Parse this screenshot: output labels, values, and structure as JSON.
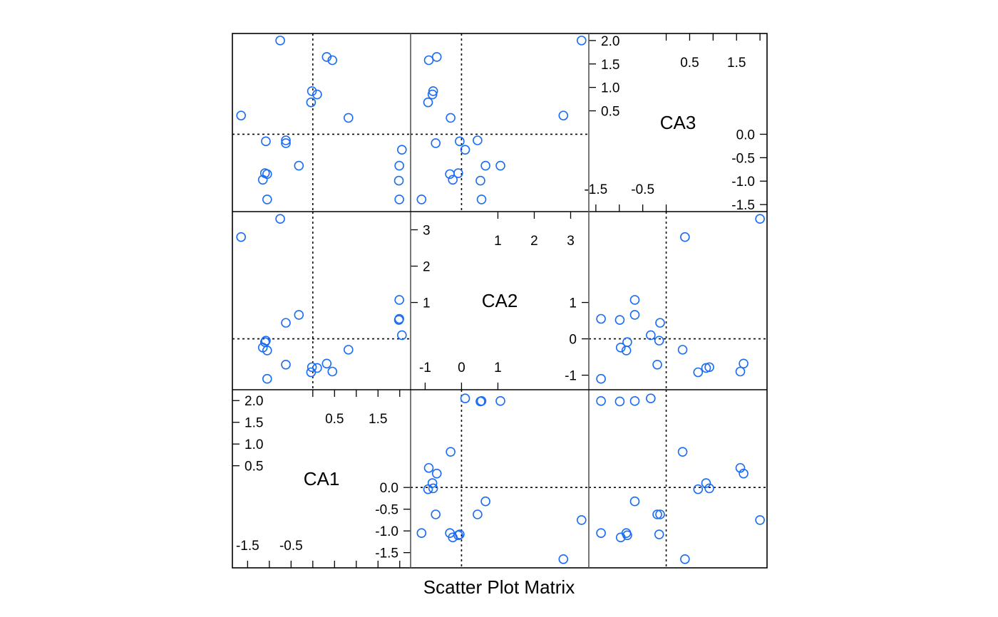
{
  "chart_data": {
    "type": "scatter",
    "title": "",
    "xlabel": "Scatter Plot Matrix",
    "variables": [
      "CA1",
      "CA2",
      "CA3"
    ],
    "point_color": "#1a6cf5",
    "reference_lines_at": 0,
    "axes": {
      "CA1": {
        "range": [
          -1.85,
          2.25
        ],
        "lower_ticks": [
          -1.5,
          -1.0,
          -0.5,
          0.0,
          0.5,
          1.0,
          1.5,
          2.0
        ],
        "lower_tick_labels": [
          "-1.5",
          "-0.5"
        ],
        "upper_ticks": [
          0.0,
          0.5,
          1.0,
          1.5,
          2.0
        ],
        "upper_tick_labels": [
          "0.5",
          "1.5"
        ],
        "side_ticks": [
          -1.5,
          -1.0,
          -0.5,
          0.0,
          0.5,
          1.0,
          1.5,
          2.0
        ],
        "side_low_labels": [
          "-1.5",
          "-1.0",
          "-0.5",
          "0.0"
        ],
        "side_high_labels": [
          "0.5",
          "1.0",
          "1.5",
          "2.0"
        ]
      },
      "CA2": {
        "range": [
          -1.4,
          3.5
        ],
        "lower_ticks": [
          -1,
          0,
          1
        ],
        "lower_tick_labels": [
          "-1",
          "0",
          "1"
        ],
        "upper_ticks": [
          1,
          2,
          3
        ],
        "upper_tick_labels": [
          "1",
          "2",
          "3"
        ],
        "side_ticks": [
          -1,
          0,
          1,
          2,
          3
        ],
        "side_low_labels": [
          "-1",
          "0",
          "1"
        ],
        "side_high_labels": [
          "1",
          "2",
          "3"
        ]
      },
      "CA3": {
        "range": [
          -1.65,
          2.15
        ],
        "lower_ticks": [
          -1.5,
          -1.0,
          -0.5,
          0.0
        ],
        "lower_tick_labels": [
          "-1.5",
          "-0.5"
        ],
        "upper_ticks": [
          0.0,
          0.5,
          1.0,
          1.5,
          2.0
        ],
        "upper_tick_labels": [
          "0.5",
          "1.5"
        ],
        "side_ticks": [
          -1.5,
          -1.0,
          -0.5,
          0.0,
          0.5,
          1.0,
          1.5,
          2.0
        ],
        "side_low_labels": [
          "-1.5",
          "-1.0",
          "-0.5",
          "0.0"
        ],
        "side_high_labels": [
          "0.5",
          "1.0",
          "1.5",
          "2.0"
        ]
      }
    },
    "points": [
      {
        "CA1": 2.05,
        "CA2": 0.1,
        "CA3": -0.33
      },
      {
        "CA1": 1.98,
        "CA2": 0.52,
        "CA3": -0.99
      },
      {
        "CA1": 1.99,
        "CA2": 0.55,
        "CA3": -1.39
      },
      {
        "CA1": 1.99,
        "CA2": 1.07,
        "CA3": -0.67
      },
      {
        "CA1": 0.82,
        "CA2": -0.3,
        "CA3": 0.35
      },
      {
        "CA1": 0.45,
        "CA2": -0.9,
        "CA3": 1.58
      },
      {
        "CA1": 0.32,
        "CA2": -0.68,
        "CA3": 1.65
      },
      {
        "CA1": 0.1,
        "CA2": -0.8,
        "CA3": 0.85
      },
      {
        "CA1": -0.04,
        "CA2": -0.92,
        "CA3": 0.68
      },
      {
        "CA1": -0.02,
        "CA2": -0.78,
        "CA3": 0.92
      },
      {
        "CA1": -0.32,
        "CA2": 0.66,
        "CA3": -0.67
      },
      {
        "CA1": -0.62,
        "CA2": 0.44,
        "CA3": -0.13
      },
      {
        "CA1": -0.62,
        "CA2": -0.71,
        "CA3": -0.19
      },
      {
        "CA1": -1.05,
        "CA2": -0.32,
        "CA3": -0.85
      },
      {
        "CA1": -1.1,
        "CA2": -0.09,
        "CA3": -0.83
      },
      {
        "CA1": -1.15,
        "CA2": -0.24,
        "CA3": -0.97
      },
      {
        "CA1": -1.08,
        "CA2": -0.05,
        "CA3": -0.15
      },
      {
        "CA1": -0.75,
        "CA2": 3.3,
        "CA3": 2.0
      },
      {
        "CA1": -1.05,
        "CA2": -1.1,
        "CA3": -1.39
      },
      {
        "CA1": -1.65,
        "CA2": 2.8,
        "CA3": 0.4
      }
    ]
  }
}
